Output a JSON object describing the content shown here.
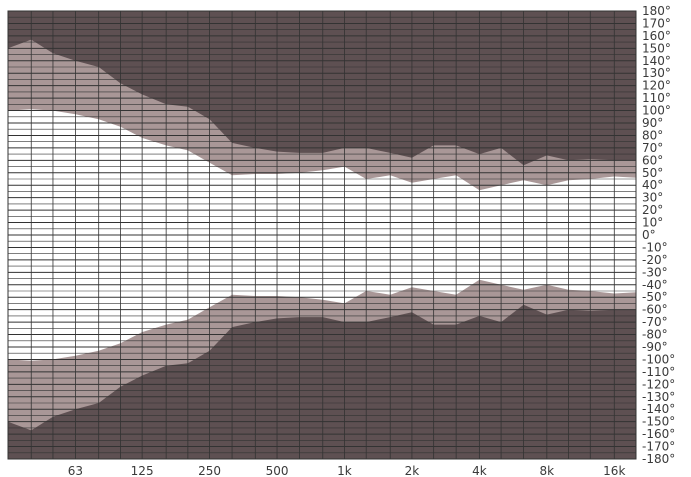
{
  "chart_data": {
    "type": "area",
    "x_scale": "log",
    "x_unit": "Hz",
    "x_ticks": [
      {
        "hz": 63,
        "label": "63"
      },
      {
        "hz": 125,
        "label": "125"
      },
      {
        "hz": 250,
        "label": "250"
      },
      {
        "hz": 500,
        "label": "500"
      },
      {
        "hz": 1000,
        "label": "1k"
      },
      {
        "hz": 2000,
        "label": "2k"
      },
      {
        "hz": 4000,
        "label": "4k"
      },
      {
        "hz": 8000,
        "label": "8k"
      },
      {
        "hz": 16000,
        "label": "16k"
      }
    ],
    "xlim": [
      31.5,
      20000
    ],
    "ylim": [
      -180,
      180
    ],
    "y_ticks": [
      180,
      170,
      160,
      150,
      140,
      130,
      120,
      110,
      100,
      90,
      80,
      70,
      60,
      50,
      40,
      30,
      20,
      10,
      0,
      -10,
      -20,
      -30,
      -40,
      -50,
      -60,
      -70,
      -80,
      -90,
      -100,
      -110,
      -120,
      -130,
      -140,
      -150,
      -160,
      -170,
      -180
    ],
    "y_tick_suffix": "°",
    "grid": true,
    "colors": {
      "outer": "#5e5052",
      "middle": "#a99797",
      "inner": "#ffffff",
      "grid": "#333333",
      "text": "#3a3a3a"
    },
    "series": [
      {
        "role": "outer-boundary",
        "x": [
          31.5,
          40,
          50,
          63,
          80,
          100,
          125,
          160,
          200,
          250,
          315,
          400,
          500,
          630,
          800,
          1000,
          1250,
          1600,
          2000,
          2500,
          3150,
          4000,
          5000,
          6300,
          8000,
          10000,
          12500,
          16000,
          20000
        ],
        "y": [
          150,
          157,
          146,
          140,
          135,
          122,
          113,
          105,
          103,
          93,
          74,
          70,
          67,
          66,
          66,
          70,
          70,
          66,
          62,
          72,
          72,
          65,
          70,
          56,
          64,
          60,
          61,
          60,
          60
        ]
      },
      {
        "role": "inner-boundary",
        "x": [
          31.5,
          40,
          50,
          63,
          80,
          100,
          125,
          160,
          200,
          250,
          315,
          400,
          500,
          630,
          800,
          1000,
          1250,
          1600,
          2000,
          2500,
          3150,
          4000,
          5000,
          6300,
          8000,
          10000,
          12500,
          16000,
          20000
        ],
        "y": [
          100,
          101,
          100,
          97,
          93,
          87,
          78,
          72,
          68,
          58,
          48,
          49,
          49,
          50,
          52,
          55,
          45,
          48,
          42,
          45,
          48,
          36,
          40,
          44,
          40,
          44,
          45,
          47,
          46
        ]
      }
    ]
  }
}
